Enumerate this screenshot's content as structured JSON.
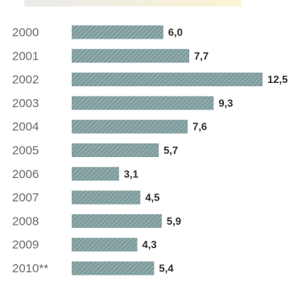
{
  "chart_data": {
    "type": "bar",
    "orientation": "horizontal",
    "categories": [
      "2000",
      "2001",
      "2002",
      "2003",
      "2004",
      "2005",
      "2006",
      "2007",
      "2008",
      "2009",
      "2010**"
    ],
    "values": [
      6.0,
      7.7,
      12.5,
      9.3,
      7.6,
      5.7,
      3.1,
      4.5,
      5.9,
      4.3,
      5.4
    ],
    "value_labels": [
      "6,0",
      "7,7",
      "12,5",
      "9,3",
      "7,6",
      "5,7",
      "3,1",
      "4,5",
      "5,9",
      "4,3",
      "5,4"
    ],
    "title": "",
    "xlabel": "",
    "ylabel": "",
    "xlim": [
      0,
      12.5
    ],
    "grid": false,
    "legend": "none",
    "colors": {
      "bar": "#7f9c9c",
      "hatch": "#a9c2c2",
      "label": "#2f2f2f",
      "category": "#6b6b6b"
    }
  }
}
